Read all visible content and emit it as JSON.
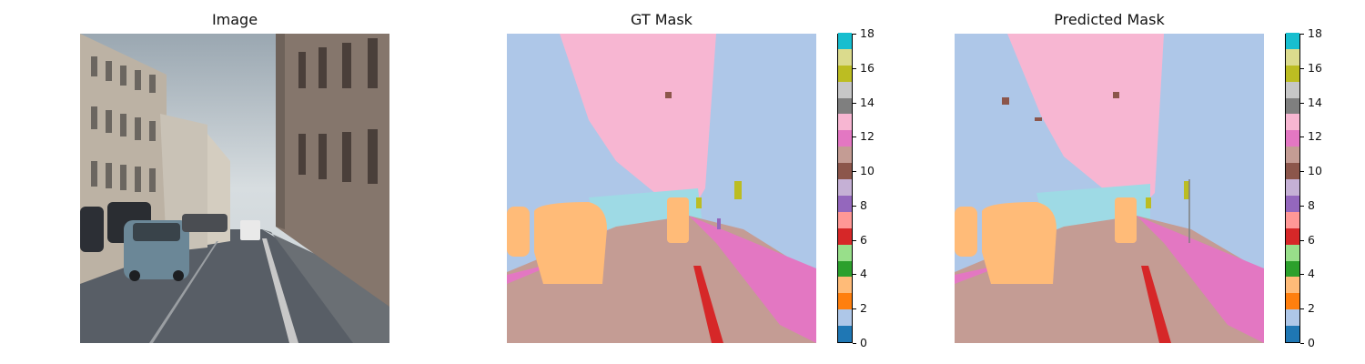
{
  "panels": [
    {
      "title": "Image"
    },
    {
      "title": "GT Mask"
    },
    {
      "title": "Predicted Mask"
    }
  ],
  "colorbar": {
    "ticks": [
      "0",
      "2",
      "4",
      "6",
      "8",
      "10",
      "12",
      "14",
      "16",
      "18"
    ],
    "palette": [
      "#1f77b4",
      "#aec7e8",
      "#ff7f0e",
      "#ffbb78",
      "#2ca02c",
      "#98df8a",
      "#d62728",
      "#ff9896",
      "#9467bd",
      "#c5b0d5",
      "#8c564b",
      "#c49c94",
      "#e377c2",
      "#f7b6d2",
      "#7f7f7f",
      "#c7c7c7",
      "#bcbd22",
      "#dbdb8d",
      "#17becf",
      "#9edae5"
    ]
  }
}
